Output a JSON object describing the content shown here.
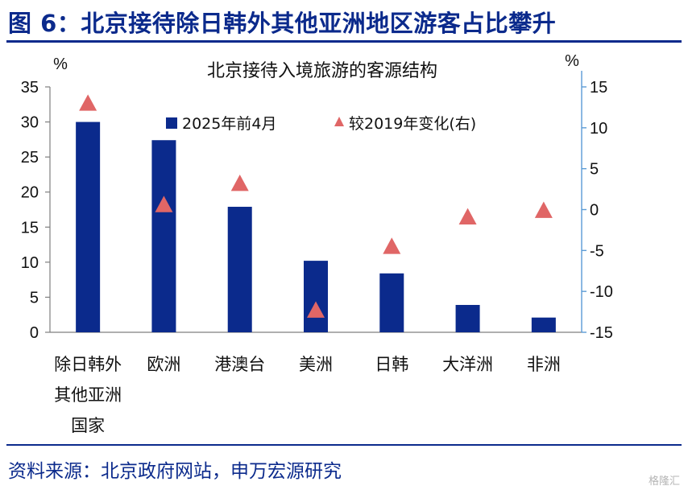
{
  "header": {
    "title": "图 6：北京接待除日韩外其他亚洲地区游客占比攀升"
  },
  "footer": {
    "source": "资料来源：北京政府网站，申万宏源研究",
    "watermark": "格隆汇"
  },
  "chart_data": {
    "type": "bar",
    "title": "北京接待入境旅游的客源结构",
    "left_axis": {
      "unit": "%",
      "ylim": [
        0,
        35
      ],
      "ticks": [
        "0",
        "5",
        "10",
        "15",
        "20",
        "25",
        "30",
        "35"
      ]
    },
    "right_axis": {
      "unit": "%",
      "ylim": [
        -15,
        15
      ],
      "ticks": [
        "-15",
        "-10",
        "-5",
        "0",
        "5",
        "10",
        "15"
      ]
    },
    "categories": [
      [
        "除日韩外",
        "其他亚洲",
        "国家"
      ],
      [
        "欧洲"
      ],
      [
        "港澳台"
      ],
      [
        "美洲"
      ],
      [
        "日韩"
      ],
      [
        "大洋洲"
      ],
      [
        "非洲"
      ]
    ],
    "series": [
      {
        "name": "2025年前4月",
        "type": "bar",
        "axis": "left",
        "color": "#0b2a8c",
        "values": [
          30.0,
          27.4,
          17.9,
          10.2,
          8.4,
          3.9,
          2.1
        ]
      },
      {
        "name": "较2019年变化(右)",
        "type": "scatter",
        "marker": "triangle",
        "axis": "right",
        "color": "#e06666",
        "values": [
          13.0,
          0.6,
          3.2,
          -12.3,
          -4.5,
          -0.9,
          -0.1
        ]
      }
    ],
    "legend_position": "top-center",
    "grid": false
  }
}
